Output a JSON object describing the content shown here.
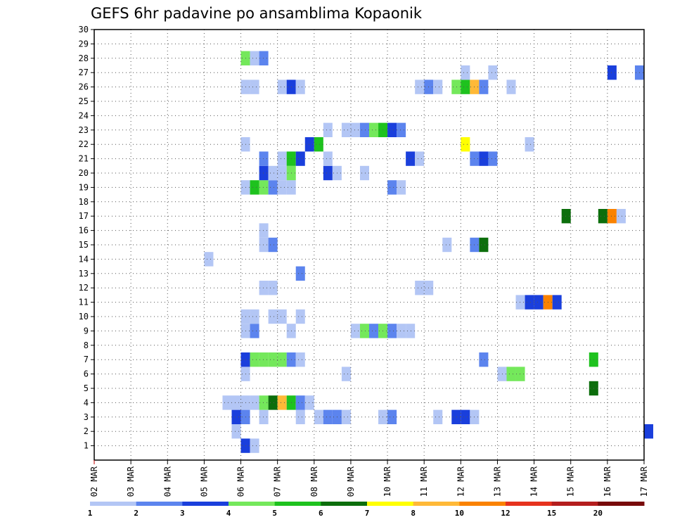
{
  "chart_data": {
    "type": "heatmap",
    "title": "GEFS 6hr padavine po ansamblima Kopaonik",
    "x_tick_labels": [
      "02 MAR",
      "03 MAR",
      "04 MAR",
      "05 MAR",
      "06 MAR",
      "07 MAR",
      "08 MAR",
      "09 MAR",
      "10 MAR",
      "11 MAR",
      "12 MAR",
      "13 MAR",
      "14 MAR",
      "15 MAR",
      "16 MAR",
      "17 MAR"
    ],
    "x_range_days": [
      2,
      17
    ],
    "time_step_hours": 6,
    "y_tick_labels": [
      "1",
      "2",
      "3",
      "4",
      "5",
      "6",
      "7",
      "8",
      "9",
      "10",
      "11",
      "12",
      "13",
      "14",
      "15",
      "16",
      "17",
      "18",
      "19",
      "20",
      "21",
      "22",
      "23",
      "24",
      "25",
      "26",
      "27",
      "28",
      "29",
      "30"
    ],
    "y_range": [
      0,
      30
    ],
    "grid": true,
    "colorbar": {
      "tick_labels": [
        "1",
        "2",
        "3",
        "4",
        "5",
        "6",
        "7",
        "8",
        "10",
        "12",
        "15",
        "20"
      ],
      "colors": [
        "#b3c6f5",
        "#5c84ee",
        "#1a3fdc",
        "#74e85b",
        "#1ec21e",
        "#0c6e0c",
        "#ffff00",
        "#ffb937",
        "#fa8200",
        "#e6321e",
        "#b41e1e",
        "#780a0a"
      ]
    },
    "levels_note": "cells list [member, time_index(6h steps from 02 MAR 00Z), color_class 1..12]",
    "cells": [
      [
        1,
        16,
        3
      ],
      [
        1,
        17,
        1
      ],
      [
        2,
        15,
        1
      ],
      [
        2,
        60,
        3
      ],
      [
        3,
        15,
        3
      ],
      [
        3,
        16,
        2
      ],
      [
        3,
        18,
        1
      ],
      [
        3,
        22,
        1
      ],
      [
        3,
        24,
        1
      ],
      [
        3,
        25,
        2
      ],
      [
        3,
        26,
        2
      ],
      [
        3,
        27,
        1
      ],
      [
        3,
        31,
        1
      ],
      [
        3,
        32,
        2
      ],
      [
        3,
        37,
        1
      ],
      [
        3,
        39,
        3
      ],
      [
        3,
        40,
        3
      ],
      [
        3,
        41,
        1
      ],
      [
        4,
        14,
        1
      ],
      [
        4,
        15,
        1
      ],
      [
        4,
        16,
        1
      ],
      [
        4,
        17,
        1
      ],
      [
        4,
        18,
        4
      ],
      [
        4,
        19,
        6
      ],
      [
        4,
        20,
        8
      ],
      [
        4,
        21,
        5
      ],
      [
        4,
        22,
        2
      ],
      [
        4,
        23,
        1
      ],
      [
        5,
        54,
        6
      ],
      [
        6,
        16,
        1
      ],
      [
        6,
        27,
        1
      ],
      [
        6,
        44,
        1
      ],
      [
        6,
        45,
        4
      ],
      [
        6,
        46,
        4
      ],
      [
        7,
        16,
        3
      ],
      [
        7,
        17,
        4
      ],
      [
        7,
        18,
        4
      ],
      [
        7,
        19,
        4
      ],
      [
        7,
        20,
        4
      ],
      [
        7,
        21,
        2
      ],
      [
        7,
        22,
        1
      ],
      [
        7,
        42,
        2
      ],
      [
        7,
        54,
        5
      ],
      [
        9,
        16,
        1
      ],
      [
        9,
        17,
        2
      ],
      [
        9,
        21,
        1
      ],
      [
        9,
        28,
        1
      ],
      [
        9,
        29,
        4
      ],
      [
        9,
        30,
        2
      ],
      [
        9,
        31,
        4
      ],
      [
        9,
        32,
        2
      ],
      [
        9,
        33,
        1
      ],
      [
        9,
        34,
        1
      ],
      [
        10,
        16,
        1
      ],
      [
        10,
        17,
        1
      ],
      [
        10,
        19,
        1
      ],
      [
        10,
        20,
        1
      ],
      [
        10,
        22,
        1
      ],
      [
        11,
        46,
        1
      ],
      [
        11,
        47,
        3
      ],
      [
        11,
        48,
        3
      ],
      [
        11,
        49,
        9
      ],
      [
        11,
        50,
        3
      ],
      [
        12,
        18,
        1
      ],
      [
        12,
        19,
        1
      ],
      [
        12,
        35,
        1
      ],
      [
        12,
        36,
        1
      ],
      [
        13,
        22,
        2
      ],
      [
        14,
        12,
        1
      ],
      [
        15,
        18,
        1
      ],
      [
        15,
        19,
        2
      ],
      [
        15,
        38,
        1
      ],
      [
        15,
        41,
        2
      ],
      [
        15,
        42,
        6
      ],
      [
        16,
        18,
        1
      ],
      [
        17,
        51,
        6
      ],
      [
        17,
        55,
        6
      ],
      [
        17,
        56,
        9
      ],
      [
        17,
        57,
        1
      ],
      [
        19,
        16,
        1
      ],
      [
        19,
        17,
        5
      ],
      [
        19,
        18,
        4
      ],
      [
        19,
        19,
        2
      ],
      [
        19,
        20,
        1
      ],
      [
        19,
        21,
        1
      ],
      [
        19,
        32,
        2
      ],
      [
        19,
        33,
        1
      ],
      [
        20,
        18,
        3
      ],
      [
        20,
        19,
        1
      ],
      [
        20,
        20,
        1
      ],
      [
        20,
        21,
        4
      ],
      [
        20,
        25,
        3
      ],
      [
        20,
        26,
        1
      ],
      [
        20,
        29,
        1
      ],
      [
        21,
        18,
        2
      ],
      [
        21,
        20,
        1
      ],
      [
        21,
        21,
        5
      ],
      [
        21,
        22,
        3
      ],
      [
        21,
        25,
        1
      ],
      [
        21,
        34,
        3
      ],
      [
        21,
        35,
        1
      ],
      [
        21,
        41,
        2
      ],
      [
        21,
        42,
        3
      ],
      [
        21,
        43,
        2
      ],
      [
        22,
        16,
        1
      ],
      [
        22,
        23,
        3
      ],
      [
        22,
        24,
        5
      ],
      [
        22,
        40,
        7
      ],
      [
        22,
        47,
        1
      ],
      [
        23,
        25,
        1
      ],
      [
        23,
        27,
        1
      ],
      [
        23,
        28,
        1
      ],
      [
        23,
        29,
        2
      ],
      [
        23,
        30,
        4
      ],
      [
        23,
        31,
        5
      ],
      [
        23,
        32,
        3
      ],
      [
        23,
        33,
        2
      ],
      [
        26,
        16,
        1
      ],
      [
        26,
        17,
        1
      ],
      [
        26,
        20,
        1
      ],
      [
        26,
        21,
        3
      ],
      [
        26,
        22,
        1
      ],
      [
        26,
        35,
        1
      ],
      [
        26,
        36,
        2
      ],
      [
        26,
        37,
        1
      ],
      [
        26,
        39,
        4
      ],
      [
        26,
        40,
        5
      ],
      [
        26,
        41,
        8
      ],
      [
        26,
        42,
        2
      ],
      [
        26,
        45,
        1
      ],
      [
        27,
        40,
        1
      ],
      [
        27,
        43,
        1
      ],
      [
        27,
        56,
        3
      ],
      [
        27,
        59,
        2
      ],
      [
        28,
        16,
        4
      ],
      [
        28,
        17,
        1
      ],
      [
        28,
        18,
        2
      ]
    ]
  }
}
